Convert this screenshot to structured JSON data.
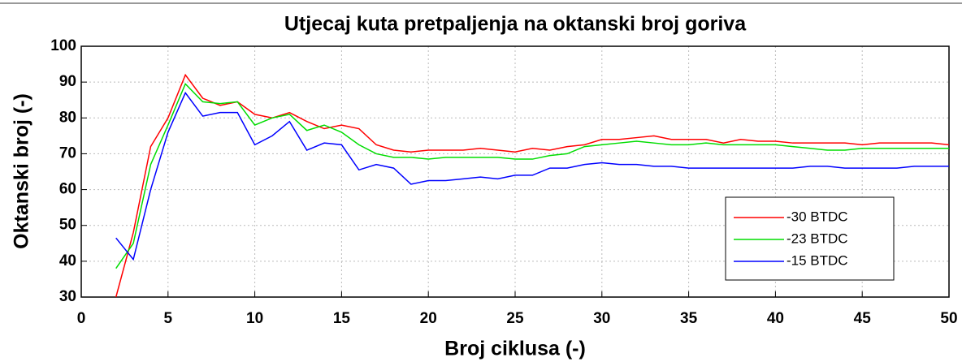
{
  "chart_data": {
    "type": "line",
    "title": "Utjecaj kuta pretpaljenja na oktanski broj goriva",
    "x_label": "Broj ciklusa (-)",
    "y_label": "Oktanski broj (-)",
    "x": [
      2,
      3,
      4,
      5,
      6,
      7,
      8,
      9,
      10,
      11,
      12,
      13,
      14,
      15,
      16,
      17,
      18,
      19,
      20,
      21,
      22,
      23,
      24,
      25,
      26,
      27,
      28,
      29,
      30,
      31,
      32,
      33,
      34,
      35,
      36,
      37,
      38,
      39,
      40,
      41,
      42,
      43,
      44,
      45,
      46,
      47,
      48,
      49,
      50
    ],
    "series": [
      {
        "name": "-30 BTDC",
        "color": "#ff0000",
        "values": [
          30,
          48,
          72,
          80,
          92,
          85.5,
          83.5,
          84.5,
          81,
          80,
          81.5,
          79,
          77,
          78,
          77,
          72.5,
          71,
          70.5,
          71,
          71,
          71,
          71.5,
          71,
          70.5,
          71.5,
          71,
          72,
          72.5,
          74,
          74,
          74.5,
          75,
          74,
          74,
          74,
          73,
          74,
          73.5,
          73.5,
          73,
          73,
          73,
          73,
          72.5,
          73,
          73,
          73,
          73,
          72.5
        ]
      },
      {
        "name": "-23 BTDC",
        "color": "#00dd00",
        "values": [
          38,
          45,
          67,
          78,
          89.5,
          84.5,
          84,
          84.5,
          78,
          80,
          81,
          76.5,
          78,
          76,
          72.5,
          70,
          69,
          69,
          68.5,
          69,
          69,
          69,
          69,
          68.5,
          68.5,
          69.5,
          70,
          72,
          72.5,
          73,
          73.5,
          73,
          72.5,
          72.5,
          73,
          72.5,
          72.5,
          72.5,
          72.5,
          72,
          71.5,
          71,
          71,
          71.5,
          71.5,
          71.5,
          71.5,
          71.5,
          71.5
        ]
      },
      {
        "name": "-15 BTDC",
        "color": "#0000ff",
        "values": [
          46.5,
          40.5,
          60,
          76,
          87,
          80.5,
          81.5,
          81.5,
          72.5,
          75,
          79,
          71,
          73,
          72.5,
          65.5,
          67,
          66,
          61.5,
          62.5,
          62.5,
          63,
          63.5,
          63,
          64,
          64,
          66,
          66,
          67,
          67.5,
          67,
          67,
          66.5,
          66.5,
          66,
          66,
          66,
          66,
          66,
          66,
          66,
          66.5,
          66.5,
          66,
          66,
          66,
          66,
          66.5,
          66.5,
          66.5
        ]
      }
    ],
    "xlim": [
      0,
      50
    ],
    "xticks": [
      0,
      5,
      10,
      15,
      20,
      25,
      30,
      35,
      40,
      45,
      50
    ],
    "ylim": [
      30,
      100
    ],
    "yticks": [
      30,
      40,
      50,
      60,
      70,
      80,
      90,
      100
    ],
    "grid": true,
    "legend": "lower right"
  }
}
